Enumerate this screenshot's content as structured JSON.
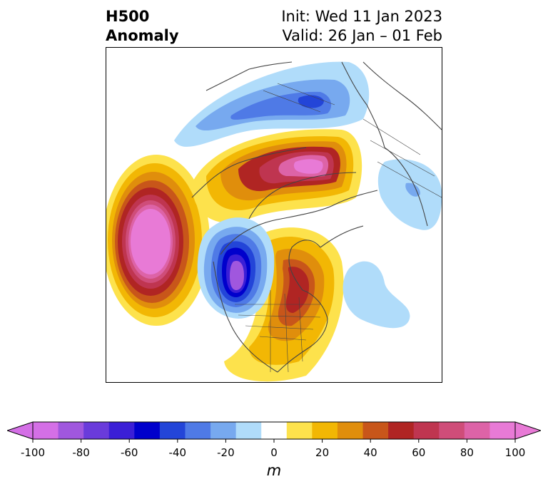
{
  "title": {
    "main_line1": "H500",
    "main_line2": "Anomaly",
    "init": "Init: Wed 11 Jan 2023",
    "valid": "Valid: 26 Jan – 01 Feb"
  },
  "colorbar": {
    "unit": "m",
    "tick_labels": [
      "-100",
      "-80",
      "-60",
      "-40",
      "-20",
      "0",
      "20",
      "40",
      "60",
      "80",
      "100"
    ],
    "levels": [
      -100,
      -90,
      -80,
      -70,
      -60,
      -50,
      -40,
      -30,
      -20,
      -10,
      10,
      20,
      30,
      40,
      50,
      60,
      70,
      80,
      90,
      100
    ],
    "colors": [
      "#d46fe6",
      "#a057de",
      "#6a3bdb",
      "#3b1fd6",
      "#0000cc",
      "#2345d8",
      "#4f7ae6",
      "#77a9ef",
      "#b0dcfa",
      "#ffffff",
      "#fde24c",
      "#f2b704",
      "#e08e0c",
      "#c8561a",
      "#b02523",
      "#bf3550",
      "#cf4d79",
      "#dd63a7",
      "#e87ad6"
    ],
    "extend": "both",
    "under_color": "#d46fe6",
    "over_color": "#e87ad6"
  },
  "map": {
    "region": "North America / North Pacific / Arctic",
    "projection": "polar stereographic",
    "coastline_color": "#444444"
  }
}
